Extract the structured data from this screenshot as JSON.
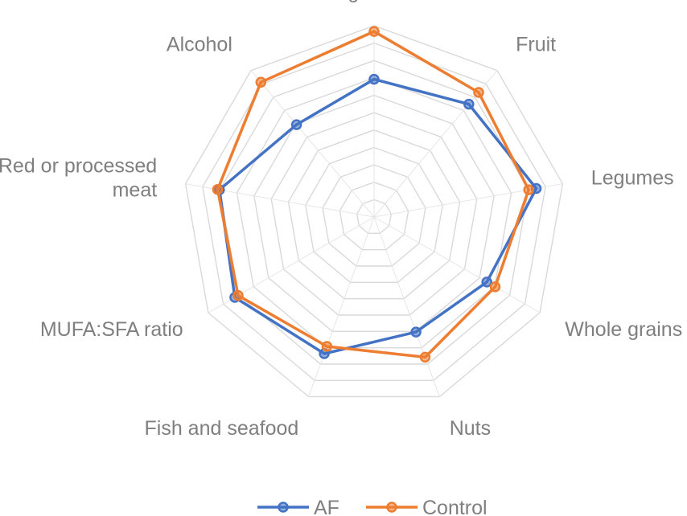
{
  "chart_data": {
    "type": "radar",
    "categories": [
      "Vegetables",
      "Fruit",
      "Legumes",
      "Whole grains",
      "Nuts",
      "Fish and seafood",
      "MUFA:SFA ratio",
      "Red or processed meat",
      "Alcohol"
    ],
    "category_lines": [
      [
        "Vegetables"
      ],
      [
        "Fruit"
      ],
      [
        "Legumes"
      ],
      [
        "Whole grains"
      ],
      [
        "Nuts"
      ],
      [
        "Fish and seafood"
      ],
      [
        "MUFA:SFA ratio"
      ],
      [
        "Red or processed",
        "meat"
      ],
      [
        "Alcohol"
      ]
    ],
    "rmin": 0,
    "rmax": 1.0,
    "grid_levels": 11,
    "grid": true,
    "legend_position": "bottom",
    "series": [
      {
        "name": "AF",
        "color": "#4472c4",
        "values": [
          0.72,
          0.77,
          0.86,
          0.68,
          0.64,
          0.76,
          0.84,
          0.82,
          0.63
        ]
      },
      {
        "name": "Control",
        "color": "#ed7d31",
        "values": [
          0.97,
          0.85,
          0.82,
          0.73,
          0.78,
          0.72,
          0.82,
          0.83,
          0.92
        ]
      }
    ]
  }
}
